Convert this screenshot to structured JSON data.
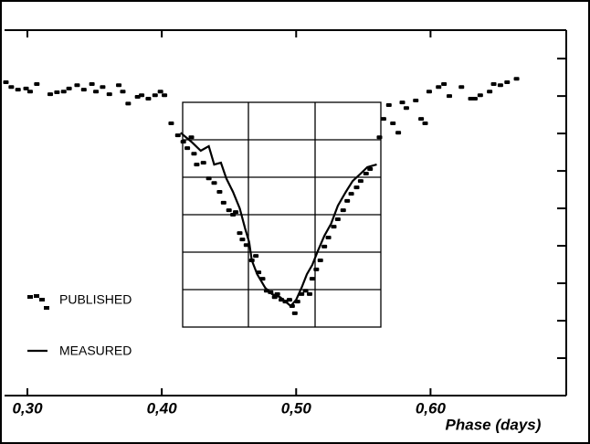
{
  "chart_data": {
    "type": "scatter",
    "xlabel": "Phase (days)",
    "xlim": [
      0.283,
      0.701
    ],
    "ylim": [
      0,
      9.76
    ],
    "xticks": [
      {
        "value": 0.3,
        "label": "0,30"
      },
      {
        "value": 0.4,
        "label": "0,40"
      },
      {
        "value": 0.5,
        "label": "0,50"
      },
      {
        "value": 0.6,
        "label": "0,60"
      }
    ],
    "yticks": [
      1,
      2,
      3,
      4,
      5,
      6,
      7,
      8,
      9
    ],
    "series": [
      {
        "name": "PUBLISHED",
        "type": "scatter",
        "color": "#000000",
        "x": [
          0.284,
          0.288,
          0.293,
          0.299,
          0.302,
          0.307,
          0.317,
          0.322,
          0.327,
          0.331,
          0.337,
          0.342,
          0.348,
          0.351,
          0.356,
          0.361,
          0.368,
          0.371,
          0.375,
          0.382,
          0.385,
          0.39,
          0.395,
          0.399,
          0.402,
          0.407,
          0.412,
          0.416,
          0.419,
          0.422,
          0.424,
          0.426,
          0.431,
          0.435,
          0.439,
          0.443,
          0.446,
          0.45,
          0.453,
          0.455,
          0.458,
          0.46,
          0.463,
          0.467,
          0.47,
          0.472,
          0.475,
          0.478,
          0.481,
          0.484,
          0.486,
          0.489,
          0.492,
          0.495,
          0.497,
          0.499,
          0.501,
          0.504,
          0.507,
          0.51,
          0.512,
          0.515,
          0.518,
          0.521,
          0.524,
          0.528,
          0.531,
          0.535,
          0.538,
          0.541,
          0.545,
          0.548,
          0.552,
          0.555,
          0.562,
          0.565,
          0.569,
          0.572,
          0.576,
          0.579,
          0.582,
          0.589,
          0.593,
          0.596,
          0.599,
          0.606,
          0.61,
          0.614,
          0.623,
          0.63,
          0.633,
          0.637,
          0.644,
          0.647,
          0.652,
          0.657,
          0.664
        ],
        "values": [
          8.37,
          8.24,
          8.17,
          8.2,
          8.12,
          8.32,
          8.05,
          8.1,
          8.12,
          8.2,
          8.29,
          8.17,
          8.32,
          8.12,
          8.24,
          8.05,
          8.29,
          8.12,
          7.8,
          7.98,
          8.02,
          7.93,
          8.02,
          8.12,
          8.02,
          7.27,
          6.95,
          6.78,
          6.61,
          6.9,
          6.46,
          6.17,
          6.22,
          5.8,
          5.68,
          5.44,
          5.15,
          4.95,
          4.83,
          4.9,
          4.34,
          4.17,
          4.02,
          3.61,
          3.73,
          3.29,
          3.12,
          2.8,
          2.76,
          2.63,
          2.71,
          2.56,
          2.51,
          2.56,
          2.39,
          2.2,
          2.51,
          2.71,
          2.8,
          2.71,
          3.12,
          3.37,
          3.61,
          3.98,
          4.22,
          4.51,
          4.71,
          4.95,
          5.2,
          5.39,
          5.56,
          5.73,
          5.93,
          6.05,
          6.9,
          7.39,
          7.76,
          7.27,
          7.02,
          7.83,
          7.68,
          7.88,
          7.39,
          7.27,
          8.12,
          8.24,
          8.32,
          8.0,
          8.24,
          7.93,
          7.93,
          8.02,
          8.12,
          8.32,
          8.29,
          8.37,
          8.46
        ]
      },
      {
        "name": "MEASURED",
        "type": "line",
        "color": "#000000",
        "x": [
          0.414,
          0.422,
          0.429,
          0.435,
          0.439,
          0.444,
          0.448,
          0.453,
          0.458,
          0.462,
          0.465,
          0.467,
          0.471,
          0.477,
          0.482,
          0.488,
          0.492,
          0.496,
          0.5,
          0.504,
          0.508,
          0.512,
          0.516,
          0.521,
          0.526,
          0.531,
          0.537,
          0.542,
          0.548,
          0.553,
          0.56
        ],
        "values": [
          7.02,
          6.78,
          6.54,
          6.66,
          6.17,
          6.22,
          5.8,
          5.44,
          5.0,
          4.46,
          4.1,
          3.61,
          3.24,
          2.88,
          2.71,
          2.63,
          2.51,
          2.39,
          2.56,
          2.88,
          3.24,
          3.49,
          3.85,
          4.27,
          4.59,
          5.07,
          5.44,
          5.73,
          5.93,
          6.1,
          6.17
        ]
      }
    ]
  }
}
